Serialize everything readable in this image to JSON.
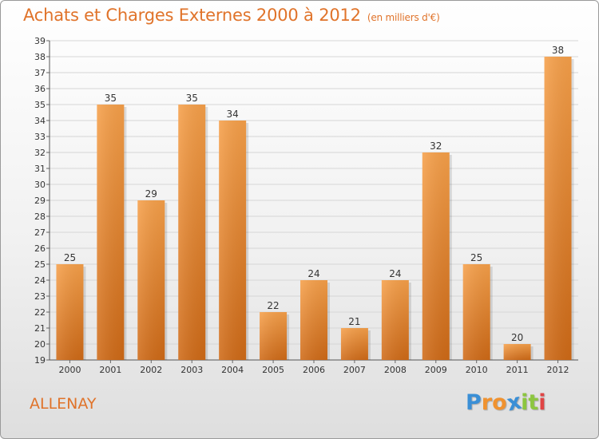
{
  "chart_data": {
    "type": "bar",
    "title": "Achats et Charges Externes 2000 à 2012",
    "subtitle": "(en milliers d'€)",
    "categories": [
      "2000",
      "2001",
      "2002",
      "2003",
      "2004",
      "2005",
      "2006",
      "2007",
      "2008",
      "2009",
      "2010",
      "2011",
      "2012"
    ],
    "values": [
      25,
      35,
      29,
      35,
      34,
      22,
      24,
      21,
      24,
      32,
      25,
      20,
      38
    ],
    "ylim": [
      19,
      39
    ],
    "yticks": [
      19,
      20,
      21,
      22,
      23,
      24,
      25,
      26,
      27,
      28,
      29,
      30,
      31,
      32,
      33,
      34,
      35,
      36,
      37,
      38,
      39
    ],
    "xlabel": "",
    "ylabel": "",
    "grid": true,
    "bar_color": "#f0922f"
  },
  "commune": "ALLENAY",
  "logo": {
    "letters": [
      "P",
      "r",
      "o",
      "x",
      "i",
      "t",
      "i"
    ],
    "colors": [
      "#3a8fd6",
      "#f0922f",
      "#f0922f",
      "#3a8fd6",
      "#8cc63f",
      "#8cc63f",
      "#e04444"
    ]
  }
}
